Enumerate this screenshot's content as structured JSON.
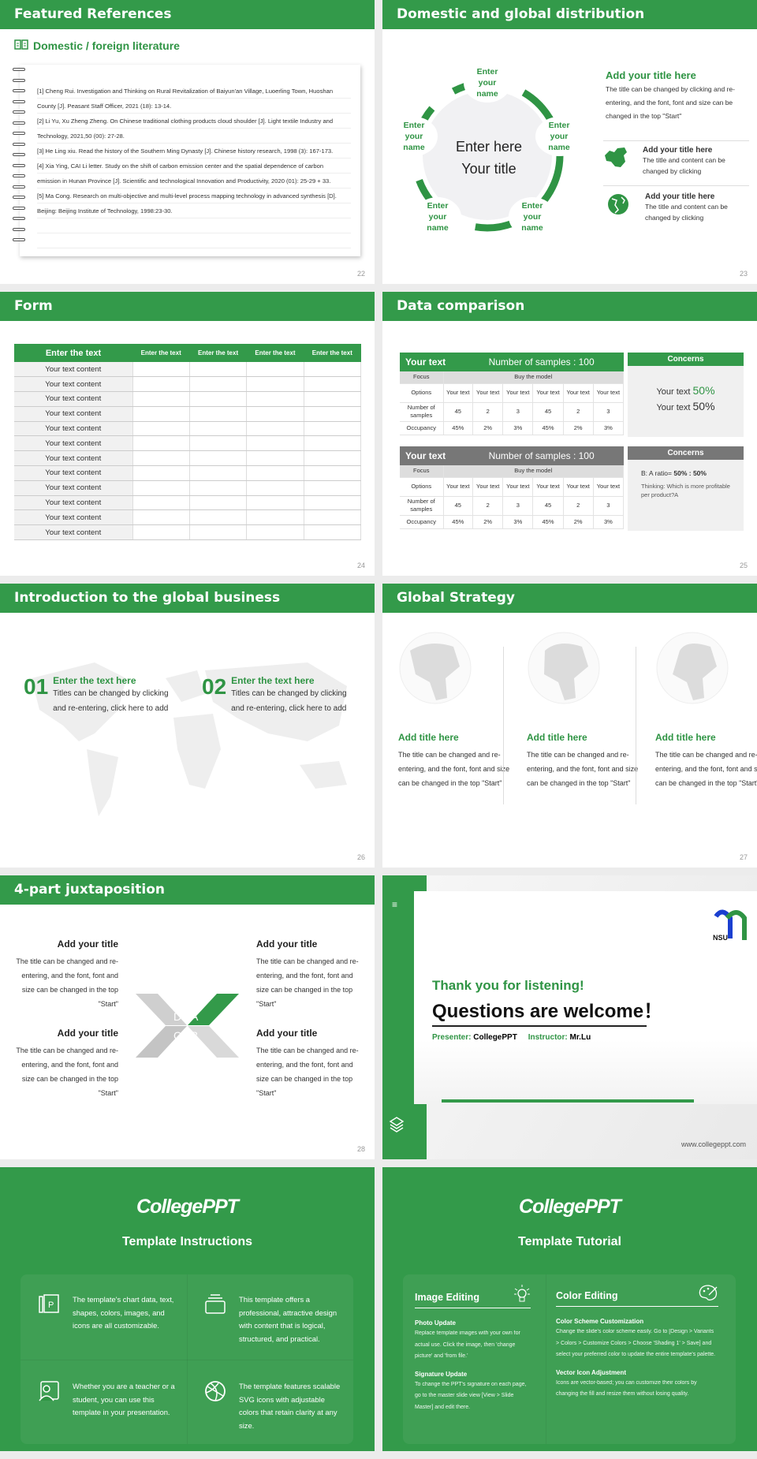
{
  "slides": {
    "s22": {
      "title": "Featured References",
      "subtitle": "Domestic / foreign literature",
      "page": "22",
      "refs": [
        "[1] Cheng Rui. Investigation and Thinking on Rural Revitalization of Baiyun'an Village, Luoerling Town, Huoshan",
        "County [J]. Peasant Staff Officer, 2021 (18): 13-14.",
        "[2] Li Yu, Xu Zheng Zheng. On Chinese traditional clothing products cloud shoulder [J]. Light textile Industry and",
        "Technology, 2021,50 (00): 27-28.",
        "[3] He Ling xiu. Read the history of the Southern Ming Dynasty [J]. Chinese history research, 1998 (3): 167-173.",
        "[4] Xia Ying, CAI Li letter. Study on the shift of carbon emission center and the spatial dependence of carbon",
        "emission in Hunan Province [J]. Scientific and technological Innovation and Productivity, 2020 (01): 25-29 + 33.",
        "[5] Ma Cong. Research on multi-objective and multi-level process mapping technology in advanced synthesis [D].",
        "Beijing: Beijing Institute of Technology, 1998:23-30.",
        "",
        ""
      ]
    },
    "s23": {
      "title": "Domestic and global distribution",
      "page": "23",
      "center_line1": "Enter here",
      "center_line2": "Your title",
      "node_label": [
        "Enter",
        "your",
        "name"
      ],
      "main_title": "Add your title here",
      "main_text": "The title can be changed by clicking and re-entering, and the font, font and size can be changed in the top \"Start\"",
      "items": [
        {
          "icon": "china-map-icon",
          "title": "Add your title here",
          "text": "The title and content can be changed by clicking"
        },
        {
          "icon": "globe-icon",
          "title": "Add your title here",
          "text": "The title and content can be changed by clicking"
        }
      ]
    },
    "s24": {
      "title": "Form",
      "page": "24",
      "headers": [
        "Enter the text",
        "Enter the text",
        "Enter the text",
        "Enter the text",
        "Enter the text"
      ],
      "rows": [
        "Your text content",
        "Your text content",
        "Your text content",
        "Your text content",
        "Your text content",
        "Your text content",
        "Your text content",
        "Your text content",
        "Your text content",
        "Your text content",
        "Your text content",
        "Your text content"
      ]
    },
    "s25": {
      "title": "Data comparison",
      "page": "25",
      "tables": [
        {
          "color": "#339a4a",
          "label": "Your text",
          "samples": "Number of samples : 100",
          "focus": "Focus",
          "model": "Buy the model",
          "options_label": "Options",
          "options": [
            "Your text",
            "Your text",
            "Your text",
            "Your text",
            "Your text",
            "Your text"
          ],
          "num_label": "Number of samples",
          "nums": [
            "45",
            "2",
            "3",
            "45",
            "2",
            "3"
          ],
          "occ_label": "Occupancy",
          "occ": [
            "45%",
            "2%",
            "3%",
            "45%",
            "2%",
            "3%"
          ]
        },
        {
          "color": "#777777",
          "label": "Your text",
          "samples": "Number of samples : 100",
          "focus": "Focus",
          "model": "Buy the model",
          "options_label": "Options",
          "options": [
            "Your text",
            "Your text",
            "Your text",
            "Your text",
            "Your text",
            "Your text"
          ],
          "num_label": "Number of samples",
          "nums": [
            "45",
            "2",
            "3",
            "45",
            "2",
            "3"
          ],
          "occ_label": "Occupancy",
          "occ": [
            "45%",
            "2%",
            "3%",
            "45%",
            "2%",
            "3%"
          ]
        }
      ],
      "concern1": {
        "title": "Concerns",
        "line1": "Your text",
        "val1": "50%",
        "line2": "Your text",
        "val2": "50%"
      },
      "concern2": {
        "title": "Concerns",
        "ratio_label": "B: A ratio=",
        "ratio": "50% : 50%",
        "thinking": "Thinking: Which is more profitable per product?A"
      }
    },
    "s26": {
      "title": "Introduction to the global business",
      "page": "26",
      "items": [
        {
          "num": "01",
          "title": "Enter the text here",
          "text": "Titles can be changed by clicking and re-entering, click here to add"
        },
        {
          "num": "02",
          "title": "Enter the text here",
          "text": "Titles can be changed by clicking and re-entering, click here to add"
        }
      ]
    },
    "s27": {
      "title": "Global Strategy",
      "page": "27",
      "cols": [
        {
          "title": "Add title here",
          "text": "The title can be changed and re-entering, and the font, font and size can be changed in the top \"Start\""
        },
        {
          "title": "Add title here",
          "text": "The title can be changed and re-entering, and the font, font and size can be changed in the top \"Start\""
        },
        {
          "title": "Add title here",
          "text": "The title can be changed and re-entering, and the font, font and size can be changed in the top \"Start\""
        }
      ]
    },
    "s28": {
      "title": "4-part juxtaposition",
      "page": "28",
      "letters": [
        "A",
        "B",
        "C",
        "D"
      ],
      "quads": [
        {
          "title": "Add your title",
          "text": "The title can be changed and re-entering, and the font, font and size can be changed in the top \"Start\""
        },
        {
          "title": "Add your title",
          "text": "The title can be changed and re-entering, and the font, font and size can be changed in the top \"Start\""
        },
        {
          "title": "Add your title",
          "text": "The title can be changed and re-entering, and the font, font and size can be changed in the top \"Start\""
        },
        {
          "title": "Add your title",
          "text": "The title can be changed and re-entering, and the font, font and size can be changed in the top \"Start\""
        }
      ]
    },
    "s29": {
      "thanks": "Thank you for listening!",
      "questions": "Questions are welcome！",
      "presenter_label": "Presenter:",
      "presenter": "CollegePPT",
      "instructor_label": "Instructor:",
      "instructor": "Mr.Lu",
      "website": "www.collegeppt.com",
      "logo_text": "NSU"
    },
    "s30": {
      "brand": "CollegePPT",
      "title": "Template Instructions",
      "cells": [
        {
          "icon": "slides-icon",
          "text": "The template's chart data, text, shapes, colors, images, and icons are all customizable."
        },
        {
          "icon": "layers-icon",
          "text": "This template offers a professional, attractive design with content that is logical, structured, and practical."
        },
        {
          "icon": "teacher-icon",
          "text": "Whether you are a teacher or a student, you can use this template in your presentation."
        },
        {
          "icon": "ball-icon",
          "text": "The template features scalable SVG icons with adjustable colors that retain clarity at any size."
        }
      ]
    },
    "s31": {
      "brand": "CollegePPT",
      "title": "Template Tutorial",
      "image_editing": {
        "title": "Image Editing",
        "icon": "lightbulb-icon",
        "sections": [
          {
            "title": "Photo Update",
            "text": "Replace template images with your own for actual use. Click the image, then 'change picture' and 'from file.'"
          },
          {
            "title": "Signature Update",
            "text": "To change the PPT's signature on each page, go to the master slide view [View > Slide Master] and edit there."
          }
        ]
      },
      "color_editing": {
        "title": "Color Editing",
        "icon": "palette-icon",
        "sections": [
          {
            "title": "Color Scheme Customization",
            "text": "Change the slide's color scheme easily. Go to [Design > Variants > Colors > Customize Colors > Choose 'Shading 1' > Save] and select your preferred color to update the entire template's palette."
          },
          {
            "title": "Vector Icon Adjustment",
            "text": "Icons are vector-based; you can customize their colors by changing the fill and resize them without losing quality."
          }
        ]
      }
    }
  },
  "colors": {
    "accent": "#339a4a",
    "gray_header": "#777777",
    "background": "#ececec"
  }
}
